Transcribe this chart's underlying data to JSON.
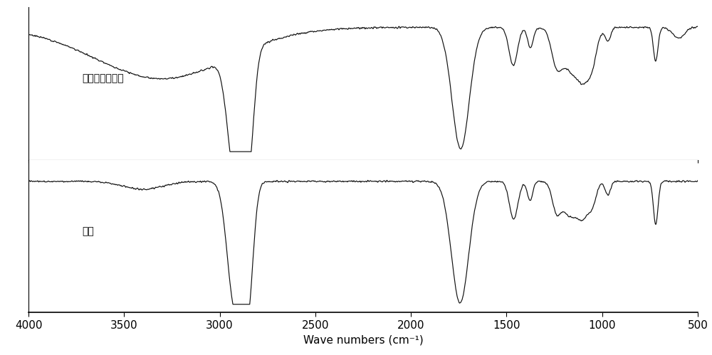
{
  "xlabel": "Wave numbers (cm⁻¹)",
  "label_top": "猜油甘油解产物",
  "label_bottom": "猜油",
  "x_ticks": [
    4000,
    3500,
    3000,
    2500,
    2000,
    1500,
    1000,
    500
  ],
  "background_color": "#ffffff",
  "line_color": "#111111"
}
